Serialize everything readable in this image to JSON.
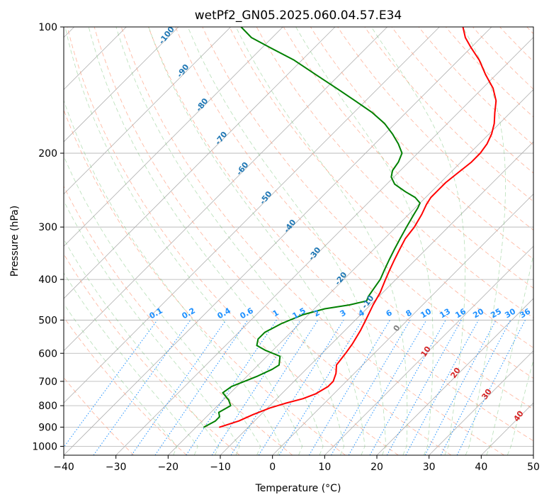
{
  "chart_data": {
    "type": "line",
    "title": "wetPf2_GN05.2025.060.04.57.E34",
    "xlabel": "Temperature (°C)",
    "ylabel": "Pressure (hPa)",
    "xlim": [
      -40,
      50
    ],
    "ylim": [
      1050,
      100
    ],
    "y_scale": "log",
    "x_ticks": [
      -40,
      -30,
      -20,
      -10,
      0,
      10,
      20,
      30,
      40,
      50
    ],
    "y_ticks": [
      100,
      200,
      300,
      400,
      500,
      600,
      700,
      800,
      900,
      1000
    ],
    "skew": true,
    "grid": true,
    "series": [
      {
        "color": "#ff0000",
        "points": [
          [
            -15.5,
            900
          ],
          [
            -13.0,
            870
          ],
          [
            -11.5,
            840
          ],
          [
            -9.5,
            810
          ],
          [
            -7.5,
            790
          ],
          [
            -5.0,
            770
          ],
          [
            -3.5,
            750
          ],
          [
            -2.5,
            720
          ],
          [
            -2.5,
            700
          ],
          [
            -3.5,
            670
          ],
          [
            -5.0,
            640
          ],
          [
            -5.5,
            600
          ],
          [
            -6.0,
            570
          ],
          [
            -7.0,
            530
          ],
          [
            -8.0,
            500
          ],
          [
            -9.5,
            460
          ],
          [
            -10.5,
            430
          ],
          [
            -12.0,
            400
          ],
          [
            -13.0,
            380
          ],
          [
            -14.0,
            360
          ],
          [
            -15.0,
            340
          ],
          [
            -16.0,
            320
          ],
          [
            -16.5,
            300
          ],
          [
            -17.5,
            280
          ],
          [
            -18.5,
            265
          ],
          [
            -19.0,
            255
          ],
          [
            -19.0,
            245
          ],
          [
            -19.0,
            235
          ],
          [
            -18.5,
            222
          ],
          [
            -18.0,
            210
          ],
          [
            -18.0,
            200
          ],
          [
            -18.5,
            190
          ],
          [
            -19.5,
            180
          ],
          [
            -21.0,
            170
          ],
          [
            -23.0,
            160
          ],
          [
            -25.0,
            150
          ],
          [
            -28.0,
            140
          ],
          [
            -32.0,
            130
          ],
          [
            -36.0,
            120
          ],
          [
            -40.0,
            112
          ],
          [
            -43.0,
            106
          ],
          [
            -45.5,
            100
          ]
        ]
      },
      {
        "color": "#008000",
        "points": [
          [
            -18.5,
            900
          ],
          [
            -17.5,
            870
          ],
          [
            -17.5,
            850
          ],
          [
            -18.5,
            830
          ],
          [
            -17.5,
            800
          ],
          [
            -19.0,
            775
          ],
          [
            -21.5,
            745
          ],
          [
            -21.0,
            720
          ],
          [
            -19.5,
            700
          ],
          [
            -18.0,
            680
          ],
          [
            -16.5,
            655
          ],
          [
            -16.0,
            640
          ],
          [
            -17.5,
            610
          ],
          [
            -21.5,
            590
          ],
          [
            -24.0,
            575
          ],
          [
            -25.0,
            555
          ],
          [
            -25.0,
            535
          ],
          [
            -23.5,
            510
          ],
          [
            -21.0,
            485
          ],
          [
            -18.0,
            470
          ],
          [
            -14.0,
            460
          ],
          [
            -11.5,
            450
          ],
          [
            -12.0,
            440
          ],
          [
            -12.5,
            420
          ],
          [
            -13.0,
            400
          ],
          [
            -14.0,
            380
          ],
          [
            -15.0,
            360
          ],
          [
            -16.0,
            340
          ],
          [
            -17.0,
            320
          ],
          [
            -18.0,
            300
          ],
          [
            -19.0,
            280
          ],
          [
            -19.5,
            270
          ],
          [
            -20.0,
            263
          ],
          [
            -22.0,
            255
          ],
          [
            -25.0,
            247
          ],
          [
            -28.5,
            237
          ],
          [
            -30.5,
            228
          ],
          [
            -31.5,
            220
          ],
          [
            -32.0,
            210
          ],
          [
            -33.0,
            200
          ],
          [
            -35.5,
            190
          ],
          [
            -38.5,
            180
          ],
          [
            -42.0,
            170
          ],
          [
            -46.5,
            160
          ],
          [
            -52.0,
            150
          ],
          [
            -58.0,
            140
          ],
          [
            -64.5,
            130
          ],
          [
            -71.5,
            120
          ],
          [
            -78.5,
            112
          ],
          [
            -84.0,
            106
          ],
          [
            -88.0,
            100
          ]
        ]
      }
    ],
    "dry_adiabat_labels": [
      "-100",
      "-90",
      "-80",
      "-70",
      "-60",
      "-50",
      "-40",
      "-30",
      "-20",
      "-10"
    ],
    "mixing_ratio_labels": [
      "0.1",
      "0.2",
      "0.4",
      "0.6",
      "1",
      "1.5",
      "2",
      "3",
      "4",
      "6",
      "8",
      "10",
      "13",
      "16",
      "20",
      "25",
      "30",
      "36"
    ],
    "moist_adiabat_labels": [
      "0",
      "10",
      "20",
      "30",
      "40"
    ]
  }
}
